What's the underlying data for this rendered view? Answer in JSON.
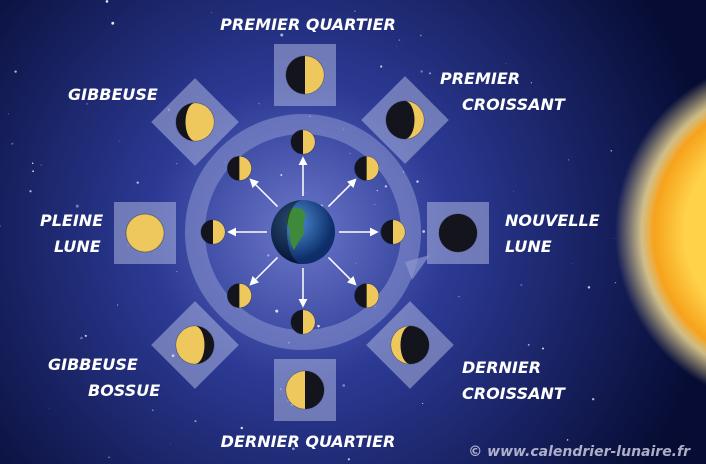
{
  "phases": [
    {
      "lines": [
        "PREMIER QUARTIER"
      ]
    },
    {
      "lines": [
        "PREMIER",
        "CROISSANT"
      ]
    },
    {
      "lines": [
        "NOUVELLE",
        "LUNE"
      ]
    },
    {
      "lines": [
        "DERNIER",
        "CROISSANT"
      ]
    },
    {
      "lines": [
        "DERNIER QUARTIER"
      ]
    },
    {
      "lines": [
        "GIBBEUSE",
        "BOSSUE"
      ]
    },
    {
      "lines": [
        "PLEINE",
        "LUNE"
      ]
    },
    {
      "lines": [
        "GIBBEUSE"
      ]
    }
  ],
  "watermark": "© www.calendrier-lunaire.fr"
}
